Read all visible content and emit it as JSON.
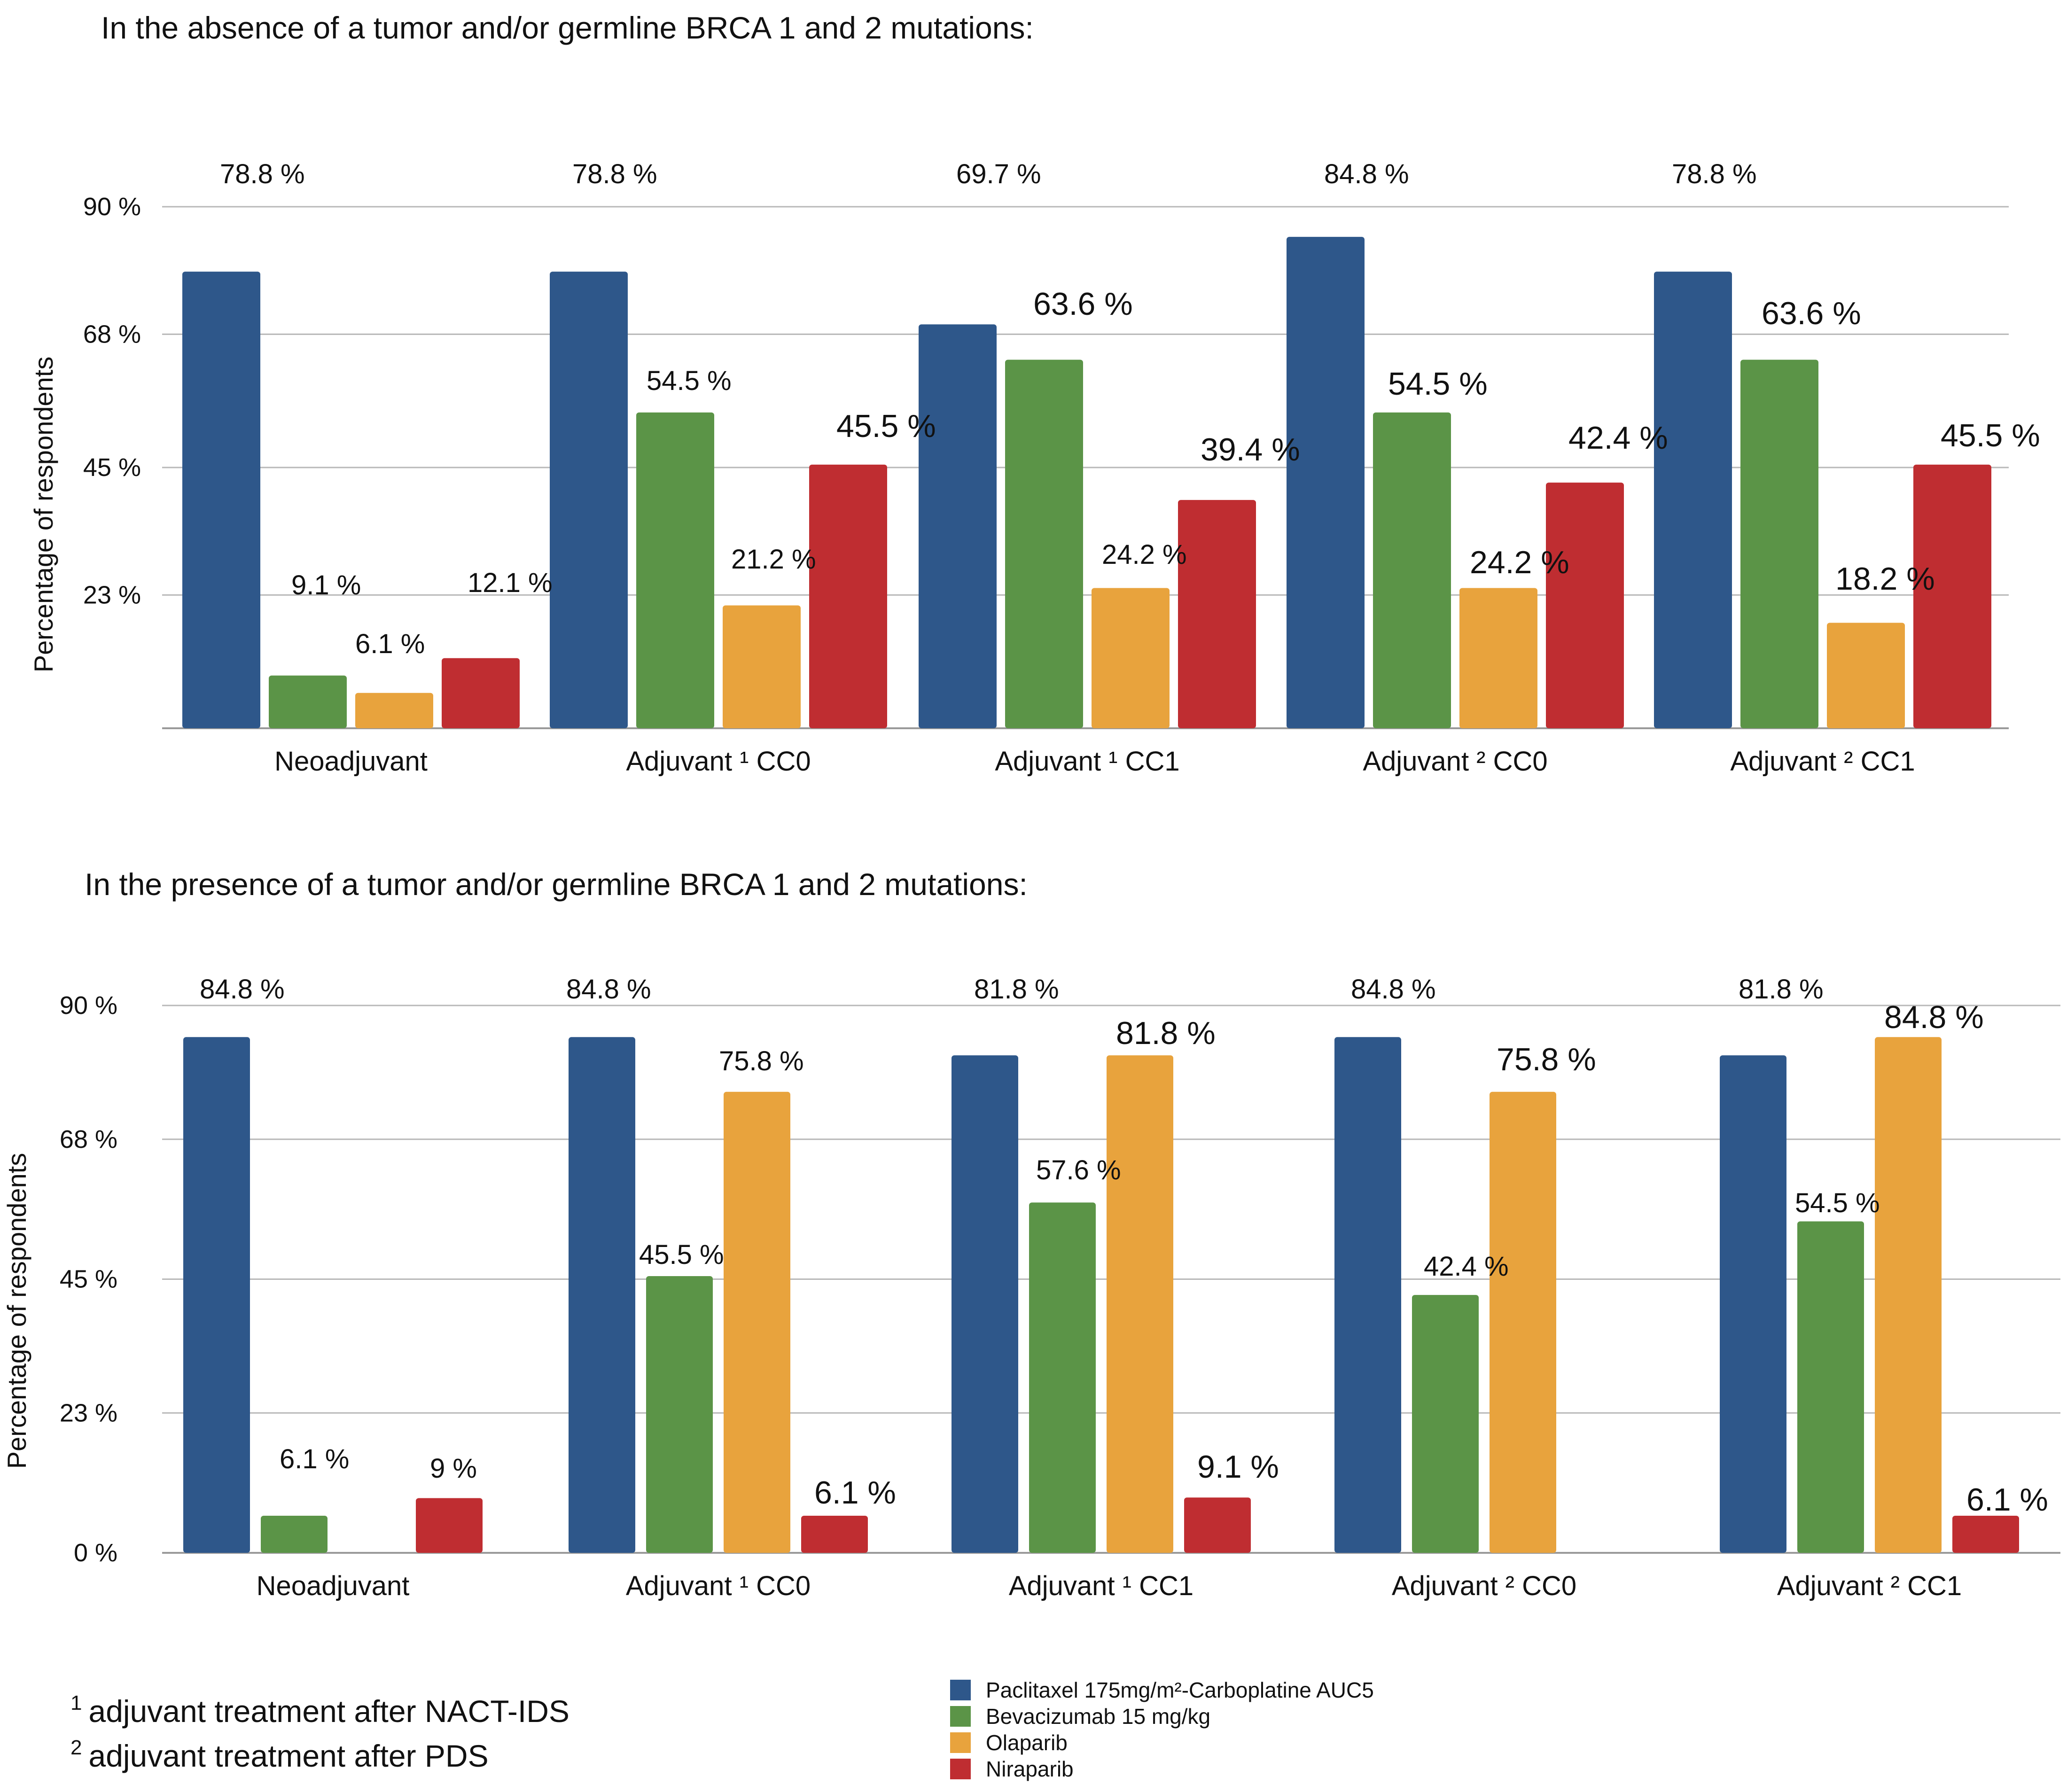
{
  "chart_data": [
    {
      "type": "bar",
      "title": "In the absence of a tumor and/or germline BRCA 1 and 2 mutations:",
      "ylabel": "Percentage of respondents",
      "xlabel": "",
      "ylim": [
        0,
        90
      ],
      "yticks": [
        23,
        45,
        68,
        90
      ],
      "ytick_labels": [
        "23 %",
        "45 %",
        "68 %",
        "90 %"
      ],
      "categories": [
        "Neoadjuvant",
        "Adjuvant ¹ CC0",
        "Adjuvant ¹ CC1",
        "Adjuvant ² CC0",
        "Adjuvant ² CC1"
      ],
      "series": [
        {
          "name": "Paclitaxel 175mg/m²-Carboplatine AUC5",
          "color": "#2e578a",
          "values": [
            78.8,
            78.8,
            69.7,
            84.8,
            78.8
          ],
          "labels": [
            "78.8 %",
            "78.8 %",
            "69.7 %",
            "84.8 %",
            "78.8 %"
          ]
        },
        {
          "name": "Bevacizumab 15 mg/kg",
          "color": "#5b9447",
          "values": [
            9.1,
            54.5,
            63.6,
            54.5,
            63.6
          ],
          "labels": [
            "9.1 %",
            "54.5 %",
            "63.6 %",
            "54.5 %",
            "63.6 %"
          ]
        },
        {
          "name": "Olaparib",
          "color": "#e8a33d",
          "values": [
            6.1,
            21.2,
            24.2,
            24.2,
            18.2
          ],
          "labels": [
            "6.1 %",
            "21.2 %",
            "24.2 %",
            "24.2 %",
            "18.2 %"
          ]
        },
        {
          "name": "Niraparib",
          "color": "#bf2d31",
          "values": [
            12.1,
            45.5,
            39.4,
            42.4,
            45.5
          ],
          "labels": [
            "12.1 %",
            "45.5 %",
            "39.4 %",
            "42.4 %",
            "45.5 %"
          ]
        }
      ]
    },
    {
      "type": "bar",
      "title": "In the presence of a tumor and/or germline BRCA 1 and 2 mutations:",
      "ylabel": "Percentage of respondents",
      "xlabel": "",
      "ylim": [
        0,
        90
      ],
      "yticks": [
        0,
        23,
        45,
        68,
        90
      ],
      "ytick_labels": [
        "0 %",
        "23 %",
        "45 %",
        "68 %",
        "90 %"
      ],
      "categories": [
        "Neoadjuvant",
        "Adjuvant ¹ CC0",
        "Adjuvant ¹ CC1",
        "Adjuvant ² CC0",
        "Adjuvant ² CC1"
      ],
      "series": [
        {
          "name": "Paclitaxel 175mg/m²-Carboplatine AUC5",
          "color": "#2e578a",
          "values": [
            84.8,
            84.8,
            81.8,
            84.8,
            81.8
          ],
          "labels": [
            "84.8 %",
            "84.8 %",
            "81.8 %",
            "84.8 %",
            "81.8 %"
          ]
        },
        {
          "name": "Bevacizumab 15 mg/kg",
          "color": "#5b9447",
          "values": [
            6.1,
            45.5,
            57.6,
            42.4,
            54.5
          ],
          "labels": [
            "6.1 %",
            "45.5 %",
            "57.6 %",
            "42.4 %",
            "54.5 %"
          ]
        },
        {
          "name": "Olaparib",
          "color": "#e8a33d",
          "values": [
            0,
            75.8,
            81.8,
            75.8,
            84.8
          ],
          "labels": [
            "",
            "75.8 %",
            "81.8 %",
            "75.8 %",
            "84.8 %"
          ]
        },
        {
          "name": "Niraparib",
          "color": "#bf2d31",
          "values": [
            9,
            6.1,
            9.1,
            0,
            6.1
          ],
          "labels": [
            "9 %",
            "6.1 %",
            "9.1 %",
            "",
            "6.1 %"
          ]
        }
      ]
    }
  ],
  "legend": [
    {
      "label": "Paclitaxel 175mg/m²-Carboplatine AUC5",
      "color": "#2e578a"
    },
    {
      "label": "Bevacizumab 15 mg/kg",
      "color": "#5b9447"
    },
    {
      "label": "Olaparib",
      "color": "#e8a33d"
    },
    {
      "label": "Niraparib",
      "color": "#bf2d31"
    }
  ],
  "footnotes": {
    "note1_mark": "1",
    "note1_text": "adjuvant treatment after NACT-IDS",
    "note2_mark": "2",
    "note2_text": "adjuvant treatment after PDS"
  }
}
